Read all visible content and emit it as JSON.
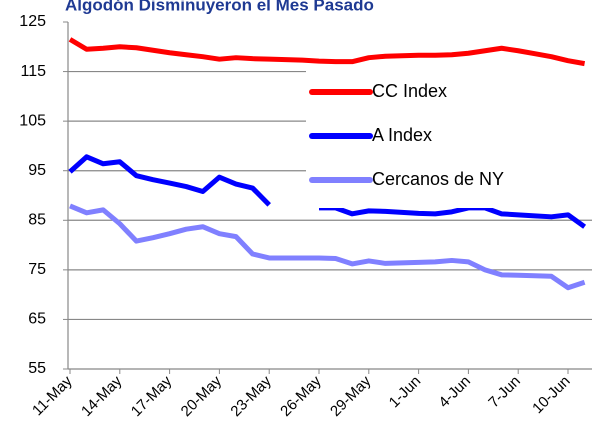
{
  "chart_data": {
    "type": "line",
    "title": "Algodón Disminuyeron el Mes Pasado",
    "categories": [
      "11-May",
      null,
      null,
      "14-May",
      null,
      null,
      "17-May",
      null,
      null,
      "20-May",
      null,
      null,
      "23-May",
      null,
      null,
      "26-May",
      null,
      null,
      "29-May",
      null,
      null,
      "1-Jun",
      null,
      null,
      "4-Jun",
      null,
      null,
      "7-Jun",
      null,
      null,
      "10-Jun",
      null
    ],
    "series": [
      {
        "name": "CC Index",
        "color": "#ff0000",
        "values": [
          121.5,
          119.5,
          119.7,
          120,
          119.8,
          119.3,
          118.8,
          118.4,
          118,
          117.5,
          117.8,
          117.6,
          117.5,
          117.4,
          117.3,
          117.1,
          117,
          117,
          117.8,
          118.1,
          118.2,
          118.3,
          118.3,
          118.4,
          118.7,
          119.2,
          119.7,
          119.2,
          118.6,
          118,
          117.2,
          116.6
        ]
      },
      {
        "name": "A Index",
        "color": "#0000ff",
        "values": [
          94.8,
          97.8,
          96.4,
          96.8,
          94,
          93.2,
          92.5,
          91.8,
          90.8,
          93.7,
          92.3,
          91.5,
          88.1,
          null,
          null,
          87.5,
          87.5,
          86.3,
          86.9,
          86.8,
          86.6,
          86.4,
          86.3,
          86.7,
          87.5,
          87.5,
          86.3,
          86.1,
          85.9,
          85.7,
          86.1,
          83.7
        ]
      },
      {
        "name": "Cercanos de NY",
        "color": "#8080ff",
        "values": [
          87.9,
          86.5,
          87.1,
          84.3,
          80.8,
          81.5,
          82.3,
          83.2,
          83.7,
          82.3,
          81.7,
          78.2,
          77.4,
          77.4,
          77.4,
          77.4,
          77.3,
          76.2,
          76.8,
          76.3,
          76.4,
          76.5,
          76.6,
          76.9,
          76.6,
          75,
          74,
          73.9,
          73.8,
          73.7,
          71.4,
          72.5
        ]
      }
    ],
    "ylim": [
      55,
      125
    ],
    "yticks": [
      55,
      65,
      75,
      85,
      95,
      105,
      115,
      125
    ],
    "grid": true
  }
}
